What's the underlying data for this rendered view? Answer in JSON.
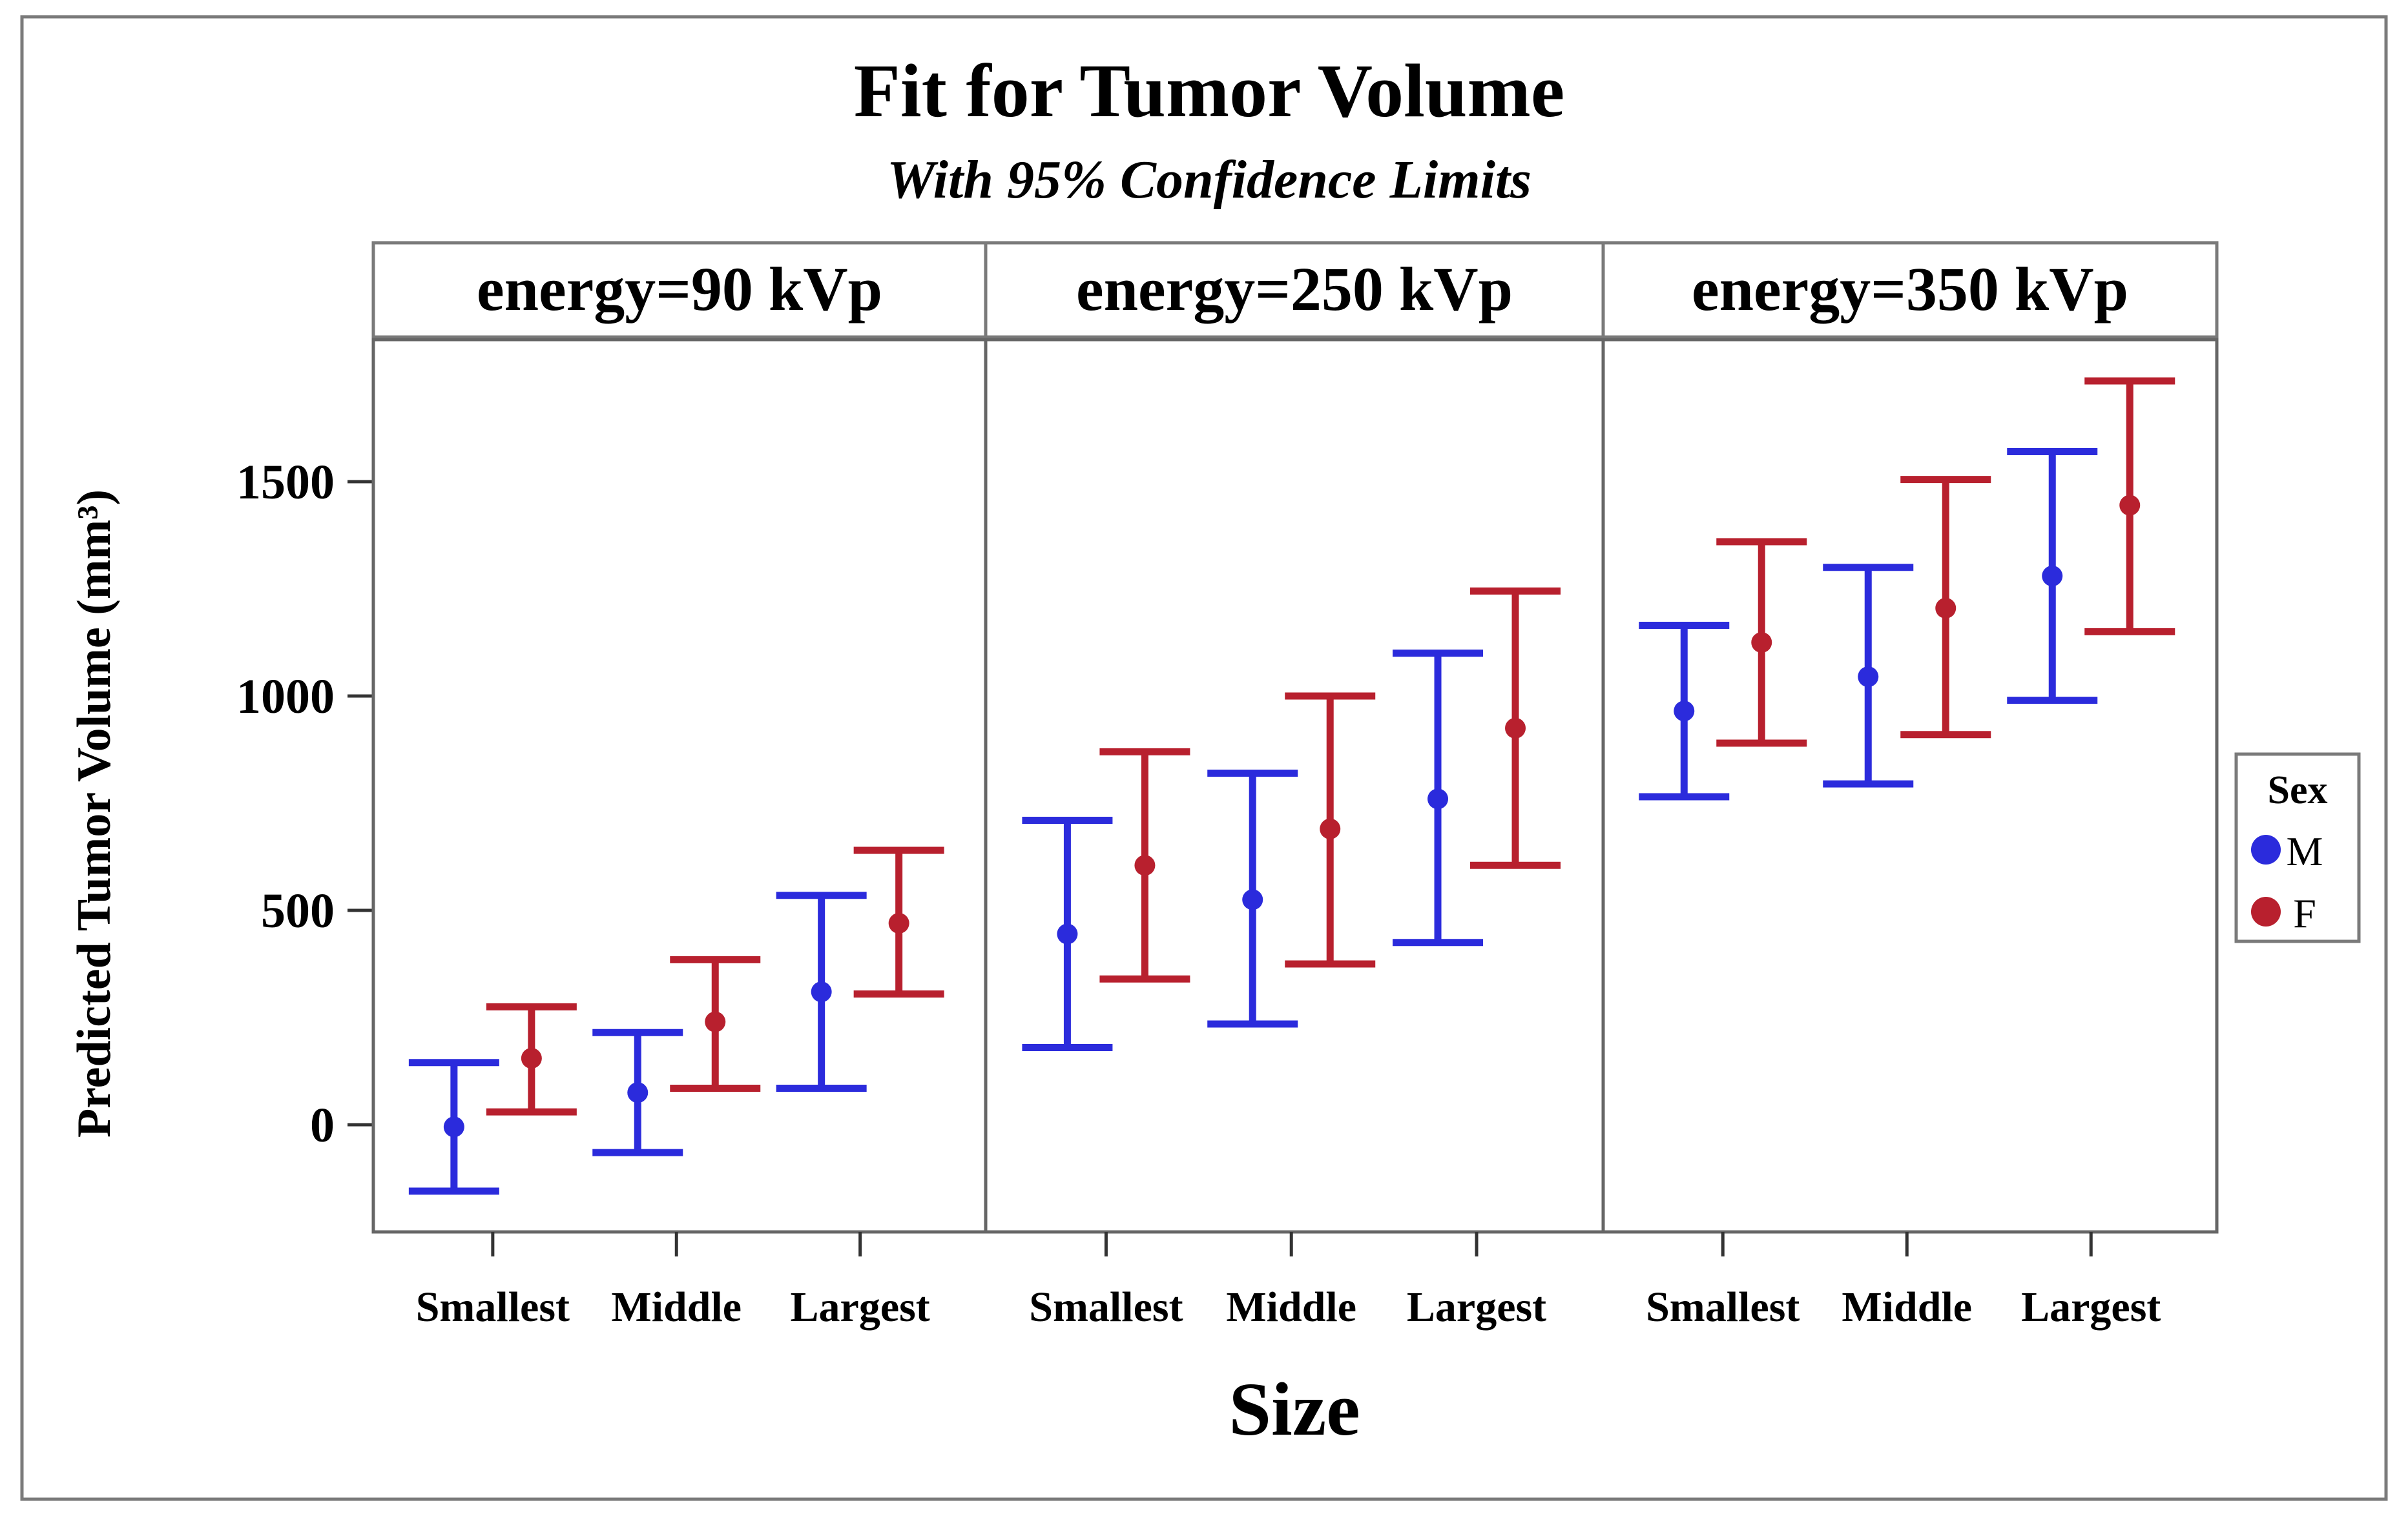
{
  "chart_data": {
    "type": "errorbar",
    "title": "Fit for Tumor Volume",
    "subtitle": "With 95% Confidence Limits",
    "xlabel": "Size",
    "ylabel": "Predicted Tumor Volume (mm³)",
    "ylim": [
      -250,
      1800
    ],
    "yticks": [
      0,
      500,
      1000,
      1500
    ],
    "categories": [
      "Smallest",
      "Middle",
      "Largest"
    ],
    "legend": {
      "title": "Sex",
      "position": "right",
      "items": [
        {
          "name": "M",
          "color": "#2b2bdc"
        },
        {
          "name": "F",
          "color": "#b8202e"
        }
      ]
    },
    "panels": [
      {
        "label": "energy=90 kVp",
        "series": [
          {
            "name": "M",
            "estimate": [
              -5,
              75,
              310
            ],
            "lower": [
              -155,
              -65,
              85
            ],
            "upper": [
              145,
              215,
              535
            ]
          },
          {
            "name": "F",
            "estimate": [
              155,
              240,
              470
            ],
            "lower": [
              30,
              85,
              305
            ],
            "upper": [
              275,
              385,
              640
            ]
          }
        ]
      },
      {
        "label": "energy=250 kVp",
        "series": [
          {
            "name": "M",
            "estimate": [
              445,
              525,
              760
            ],
            "lower": [
              180,
              235,
              425
            ],
            "upper": [
              710,
              820,
              1100
            ]
          },
          {
            "name": "F",
            "estimate": [
              605,
              690,
              925
            ],
            "lower": [
              340,
              375,
              605
            ],
            "upper": [
              870,
              1000,
              1245
            ]
          }
        ]
      },
      {
        "label": "energy=350 kVp",
        "series": [
          {
            "name": "M",
            "estimate": [
              965,
              1045,
              1280
            ],
            "lower": [
              765,
              795,
              990
            ],
            "upper": [
              1165,
              1300,
              1570
            ]
          },
          {
            "name": "F",
            "estimate": [
              1125,
              1205,
              1445
            ],
            "lower": [
              890,
              910,
              1150
            ],
            "upper": [
              1360,
              1505,
              1735
            ]
          }
        ]
      }
    ]
  }
}
